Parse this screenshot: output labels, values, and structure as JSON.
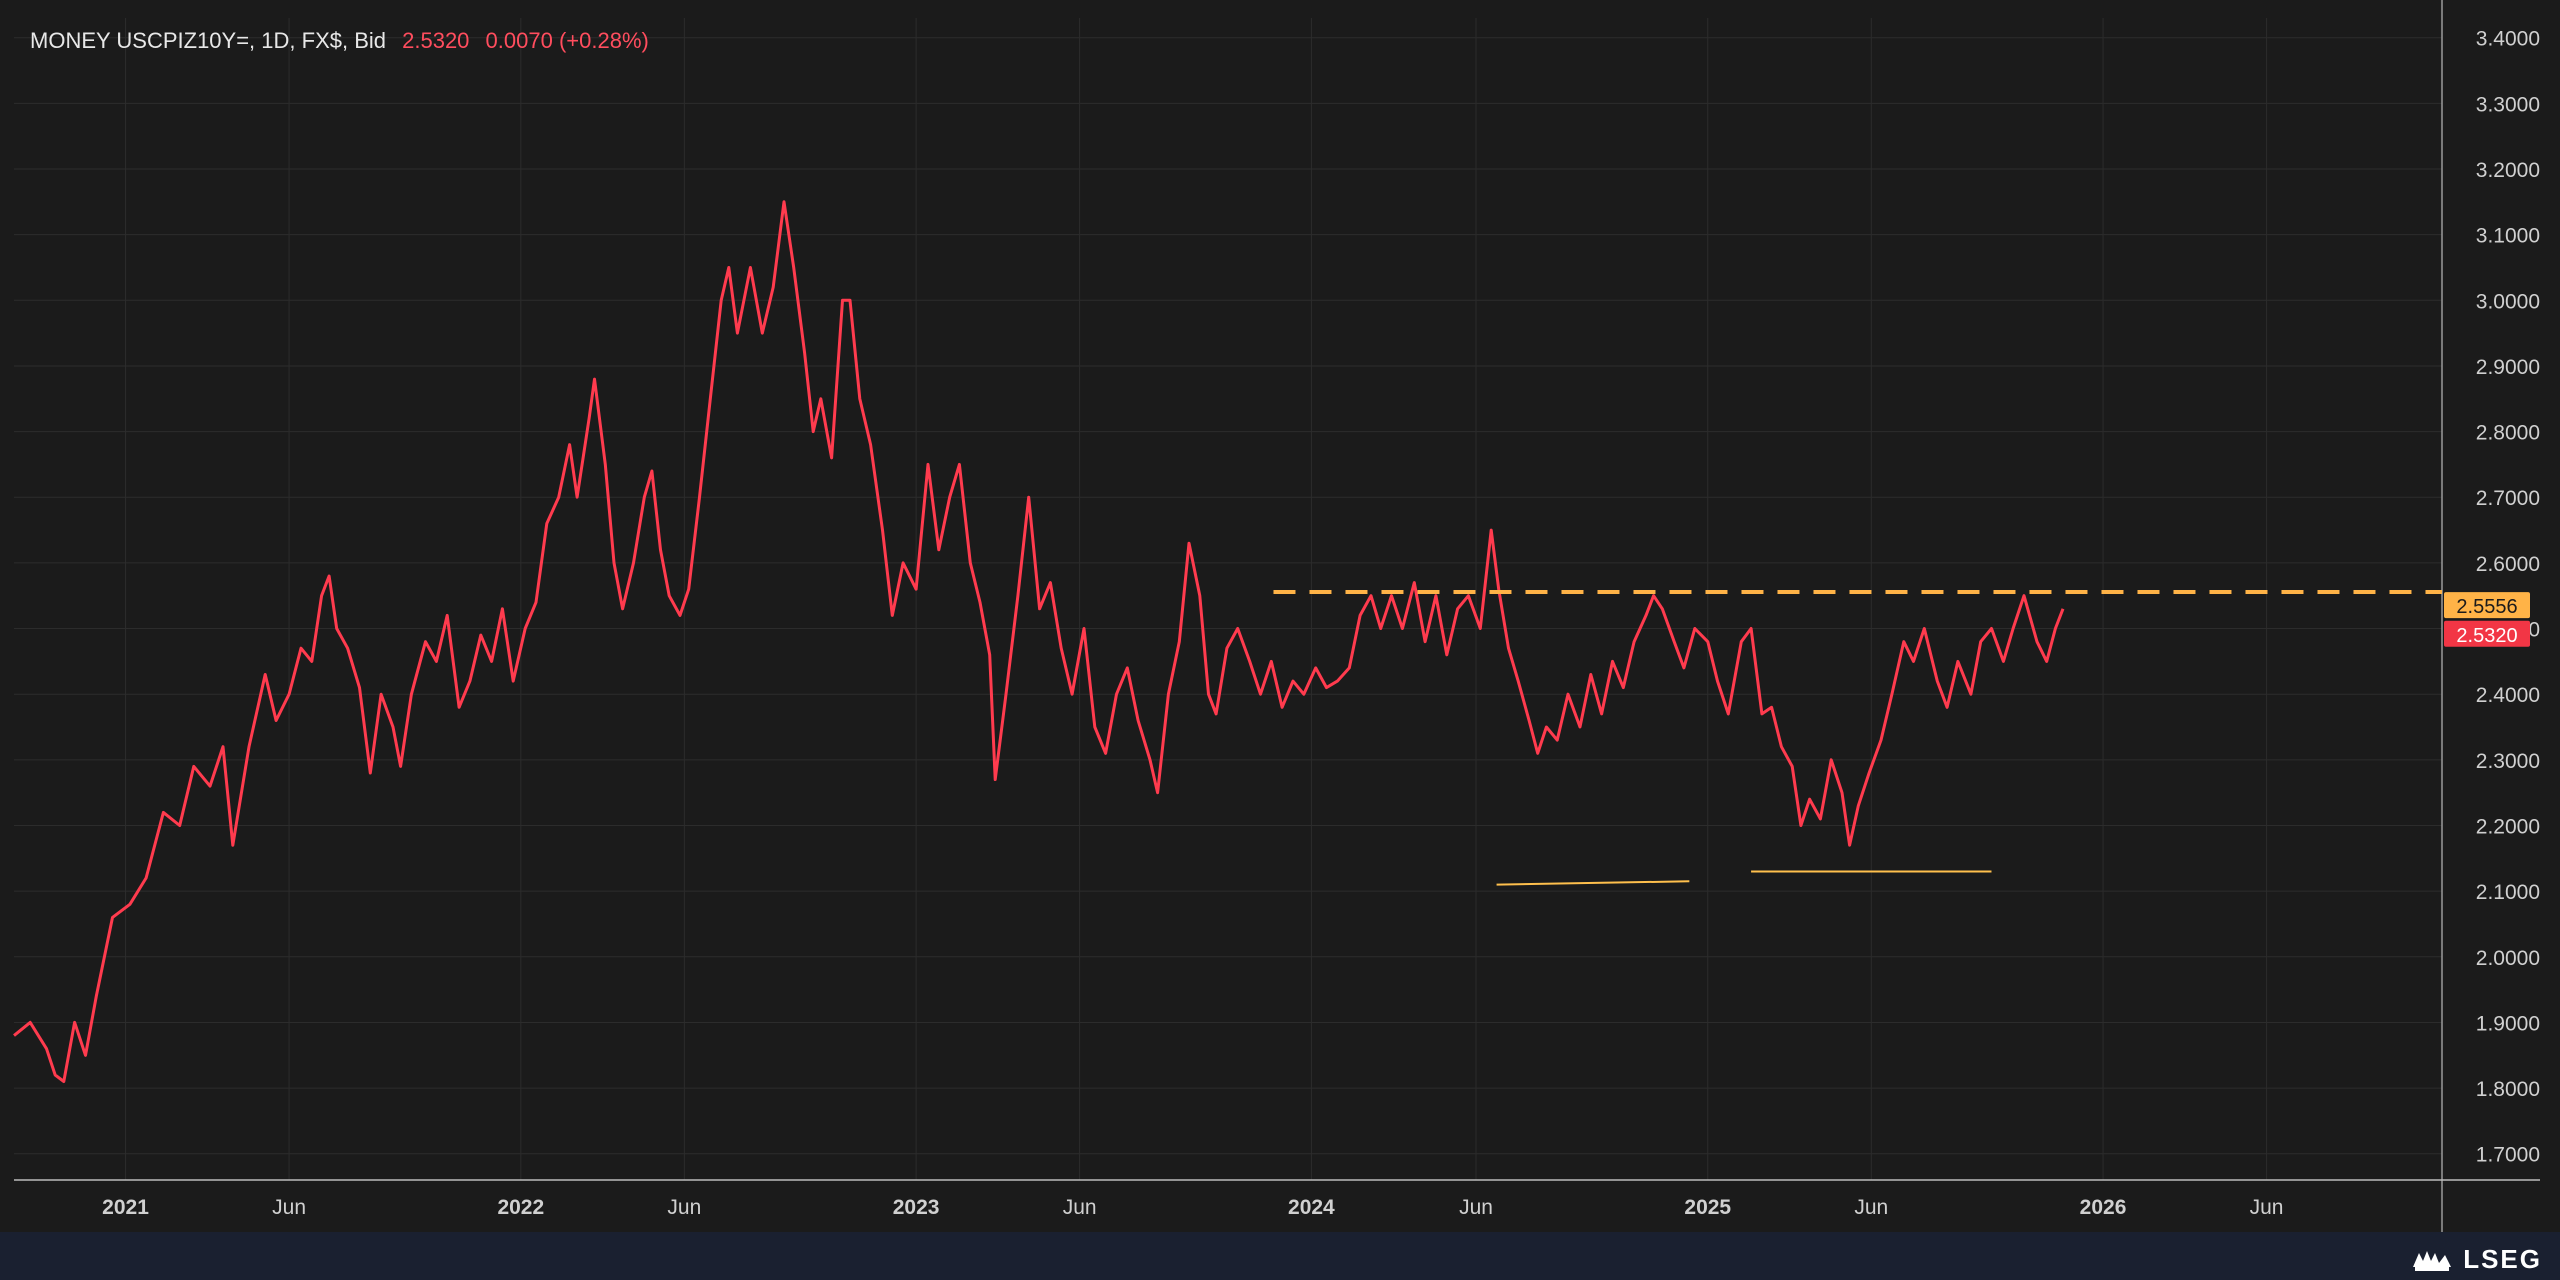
{
  "header": {
    "symbol_text": "MONEY USCPIZ10Y=, 1D, FX$, Bid",
    "price": "2.5320",
    "change": "0.0070 (+0.28%)"
  },
  "brand": {
    "name": "LSEG"
  },
  "colors": {
    "background": "#1b1b1b",
    "grid": "#2c2c2c",
    "series": "#ff3b4e",
    "resistance": "#ffb347",
    "support": "#ffc04d",
    "axis_text": "#d0d0d0",
    "price_badge": "#f23645",
    "level_badge": "#ffb347"
  },
  "chart_data": {
    "type": "line",
    "title": "MONEY USCPIZ10Y=, 1D, FX$, Bid",
    "xlabel": "",
    "ylabel": "",
    "ylim": [
      1.66,
      3.43
    ],
    "xlim": [
      "2020-09-20",
      "2026-11-10"
    ],
    "grid": true,
    "y_ticks": [
      "1.7000",
      "1.8000",
      "1.9000",
      "2.0000",
      "2.1000",
      "2.2000",
      "2.3000",
      "2.4000",
      "2.5000",
      "2.6000",
      "2.7000",
      "2.8000",
      "2.9000",
      "3.0000",
      "3.1000",
      "3.2000",
      "3.3000",
      "3.4000"
    ],
    "x_ticks": [
      {
        "date": "2021-01-01",
        "label": "2021",
        "major": true
      },
      {
        "date": "2021-06-01",
        "label": "Jun",
        "major": false
      },
      {
        "date": "2022-01-01",
        "label": "2022",
        "major": true
      },
      {
        "date": "2022-06-01",
        "label": "Jun",
        "major": false
      },
      {
        "date": "2023-01-01",
        "label": "2023",
        "major": true
      },
      {
        "date": "2023-06-01",
        "label": "Jun",
        "major": false
      },
      {
        "date": "2024-01-01",
        "label": "2024",
        "major": true
      },
      {
        "date": "2024-06-01",
        "label": "Jun",
        "major": false
      },
      {
        "date": "2025-01-01",
        "label": "2025",
        "major": true
      },
      {
        "date": "2025-06-01",
        "label": "Jun",
        "major": false
      },
      {
        "date": "2026-01-01",
        "label": "2026",
        "major": true
      },
      {
        "date": "2026-06-01",
        "label": "Jun",
        "major": false
      }
    ],
    "series": [
      {
        "values": [
          [
            "2020-09-20",
            1.88
          ],
          [
            "2020-10-05",
            1.9
          ],
          [
            "2020-10-20",
            1.86
          ],
          [
            "2020-10-28",
            1.82
          ],
          [
            "2020-11-05",
            1.81
          ],
          [
            "2020-11-15",
            1.9
          ],
          [
            "2020-11-25",
            1.85
          ],
          [
            "2020-12-05",
            1.94
          ],
          [
            "2020-12-20",
            2.06
          ],
          [
            "2021-01-05",
            2.08
          ],
          [
            "2021-01-20",
            2.12
          ],
          [
            "2021-02-05",
            2.22
          ],
          [
            "2021-02-20",
            2.2
          ],
          [
            "2021-03-05",
            2.29
          ],
          [
            "2021-03-20",
            2.26
          ],
          [
            "2021-04-01",
            2.32
          ],
          [
            "2021-04-10",
            2.17
          ],
          [
            "2021-04-25",
            2.32
          ],
          [
            "2021-05-10",
            2.43
          ],
          [
            "2021-05-20",
            2.36
          ],
          [
            "2021-06-01",
            2.4
          ],
          [
            "2021-06-12",
            2.47
          ],
          [
            "2021-06-22",
            2.45
          ],
          [
            "2021-07-01",
            2.55
          ],
          [
            "2021-07-08",
            2.58
          ],
          [
            "2021-07-15",
            2.5
          ],
          [
            "2021-07-25",
            2.47
          ],
          [
            "2021-08-05",
            2.41
          ],
          [
            "2021-08-15",
            2.28
          ],
          [
            "2021-08-25",
            2.4
          ],
          [
            "2021-09-05",
            2.35
          ],
          [
            "2021-09-12",
            2.29
          ],
          [
            "2021-09-22",
            2.4
          ],
          [
            "2021-10-05",
            2.48
          ],
          [
            "2021-10-15",
            2.45
          ],
          [
            "2021-10-25",
            2.52
          ],
          [
            "2021-11-05",
            2.38
          ],
          [
            "2021-11-15",
            2.42
          ],
          [
            "2021-11-25",
            2.49
          ],
          [
            "2021-12-05",
            2.45
          ],
          [
            "2021-12-15",
            2.53
          ],
          [
            "2021-12-25",
            2.42
          ],
          [
            "2022-01-05",
            2.5
          ],
          [
            "2022-01-15",
            2.54
          ],
          [
            "2022-01-25",
            2.66
          ],
          [
            "2022-02-05",
            2.7
          ],
          [
            "2022-02-15",
            2.78
          ],
          [
            "2022-02-22",
            2.7
          ],
          [
            "2022-03-05",
            2.82
          ],
          [
            "2022-03-10",
            2.88
          ],
          [
            "2022-03-20",
            2.75
          ],
          [
            "2022-03-28",
            2.6
          ],
          [
            "2022-04-05",
            2.53
          ],
          [
            "2022-04-15",
            2.6
          ],
          [
            "2022-04-25",
            2.7
          ],
          [
            "2022-05-02",
            2.74
          ],
          [
            "2022-05-10",
            2.62
          ],
          [
            "2022-05-18",
            2.55
          ],
          [
            "2022-05-28",
            2.52
          ],
          [
            "2022-06-05",
            2.56
          ],
          [
            "2022-06-15",
            2.7
          ],
          [
            "2022-06-25",
            2.85
          ],
          [
            "2022-07-05",
            3.0
          ],
          [
            "2022-07-12",
            3.05
          ],
          [
            "2022-07-20",
            2.95
          ],
          [
            "2022-08-01",
            3.05
          ],
          [
            "2022-08-12",
            2.95
          ],
          [
            "2022-08-22",
            3.02
          ],
          [
            "2022-09-01",
            3.15
          ],
          [
            "2022-09-10",
            3.05
          ],
          [
            "2022-09-20",
            2.92
          ],
          [
            "2022-09-28",
            2.8
          ],
          [
            "2022-10-05",
            2.85
          ],
          [
            "2022-10-15",
            2.76
          ],
          [
            "2022-10-25",
            3.0
          ],
          [
            "2022-11-01",
            3.0
          ],
          [
            "2022-11-10",
            2.85
          ],
          [
            "2022-11-20",
            2.78
          ],
          [
            "2022-12-01",
            2.65
          ],
          [
            "2022-12-10",
            2.52
          ],
          [
            "2022-12-20",
            2.6
          ],
          [
            "2023-01-01",
            2.56
          ],
          [
            "2023-01-12",
            2.75
          ],
          [
            "2023-01-22",
            2.62
          ],
          [
            "2023-02-01",
            2.7
          ],
          [
            "2023-02-10",
            2.75
          ],
          [
            "2023-02-20",
            2.6
          ],
          [
            "2023-03-01",
            2.54
          ],
          [
            "2023-03-10",
            2.46
          ],
          [
            "2023-03-15",
            2.27
          ],
          [
            "2023-03-25",
            2.4
          ],
          [
            "2023-04-05",
            2.55
          ],
          [
            "2023-04-15",
            2.7
          ],
          [
            "2023-04-25",
            2.53
          ],
          [
            "2023-05-05",
            2.57
          ],
          [
            "2023-05-15",
            2.47
          ],
          [
            "2023-05-25",
            2.4
          ],
          [
            "2023-06-05",
            2.5
          ],
          [
            "2023-06-15",
            2.35
          ],
          [
            "2023-06-25",
            2.31
          ],
          [
            "2023-07-05",
            2.4
          ],
          [
            "2023-07-15",
            2.44
          ],
          [
            "2023-07-25",
            2.36
          ],
          [
            "2023-08-05",
            2.3
          ],
          [
            "2023-08-12",
            2.25
          ],
          [
            "2023-08-22",
            2.4
          ],
          [
            "2023-09-01",
            2.48
          ],
          [
            "2023-09-10",
            2.63
          ],
          [
            "2023-09-20",
            2.55
          ],
          [
            "2023-09-28",
            2.4
          ],
          [
            "2023-10-05",
            2.37
          ],
          [
            "2023-10-15",
            2.47
          ],
          [
            "2023-10-25",
            2.5
          ],
          [
            "2023-11-05",
            2.45
          ],
          [
            "2023-11-15",
            2.4
          ],
          [
            "2023-11-25",
            2.45
          ],
          [
            "2023-12-05",
            2.38
          ],
          [
            "2023-12-15",
            2.42
          ],
          [
            "2023-12-25",
            2.4
          ],
          [
            "2024-01-05",
            2.44
          ],
          [
            "2024-01-15",
            2.41
          ],
          [
            "2024-01-25",
            2.42
          ],
          [
            "2024-02-05",
            2.44
          ],
          [
            "2024-02-15",
            2.52
          ],
          [
            "2024-02-25",
            2.55
          ],
          [
            "2024-03-05",
            2.5
          ],
          [
            "2024-03-15",
            2.55
          ],
          [
            "2024-03-25",
            2.5
          ],
          [
            "2024-04-05",
            2.57
          ],
          [
            "2024-04-15",
            2.48
          ],
          [
            "2024-04-25",
            2.55
          ],
          [
            "2024-05-05",
            2.46
          ],
          [
            "2024-05-15",
            2.53
          ],
          [
            "2024-05-25",
            2.55
          ],
          [
            "2024-06-05",
            2.5
          ],
          [
            "2024-06-15",
            2.65
          ],
          [
            "2024-06-22",
            2.56
          ],
          [
            "2024-07-01",
            2.47
          ],
          [
            "2024-07-10",
            2.42
          ],
          [
            "2024-07-20",
            2.36
          ],
          [
            "2024-07-28",
            2.31
          ],
          [
            "2024-08-05",
            2.35
          ],
          [
            "2024-08-15",
            2.33
          ],
          [
            "2024-08-25",
            2.4
          ],
          [
            "2024-09-05",
            2.35
          ],
          [
            "2024-09-15",
            2.43
          ],
          [
            "2024-09-25",
            2.37
          ],
          [
            "2024-10-05",
            2.45
          ],
          [
            "2024-10-15",
            2.41
          ],
          [
            "2024-10-25",
            2.48
          ],
          [
            "2024-11-05",
            2.52
          ],
          [
            "2024-11-12",
            2.55
          ],
          [
            "2024-11-20",
            2.53
          ],
          [
            "2024-12-01",
            2.48
          ],
          [
            "2024-12-10",
            2.44
          ],
          [
            "2024-12-20",
            2.5
          ],
          [
            "2025-01-01",
            2.48
          ],
          [
            "2025-01-10",
            2.42
          ],
          [
            "2025-01-20",
            2.37
          ],
          [
            "2025-02-01",
            2.48
          ],
          [
            "2025-02-10",
            2.5
          ],
          [
            "2025-02-20",
            2.37
          ],
          [
            "2025-03-01",
            2.38
          ],
          [
            "2025-03-10",
            2.32
          ],
          [
            "2025-03-20",
            2.29
          ],
          [
            "2025-03-28",
            2.2
          ],
          [
            "2025-04-05",
            2.24
          ],
          [
            "2025-04-15",
            2.21
          ],
          [
            "2025-04-25",
            2.3
          ],
          [
            "2025-05-05",
            2.25
          ],
          [
            "2025-05-12",
            2.17
          ],
          [
            "2025-05-20",
            2.23
          ],
          [
            "2025-05-30",
            2.28
          ],
          [
            "2025-06-10",
            2.33
          ],
          [
            "2025-06-20",
            2.4
          ],
          [
            "2025-07-01",
            2.48
          ],
          [
            "2025-07-10",
            2.45
          ],
          [
            "2025-07-20",
            2.5
          ],
          [
            "2025-08-01",
            2.42
          ],
          [
            "2025-08-10",
            2.38
          ],
          [
            "2025-08-20",
            2.45
          ],
          [
            "2025-09-01",
            2.4
          ],
          [
            "2025-09-10",
            2.48
          ],
          [
            "2025-09-20",
            2.5
          ],
          [
            "2025-10-01",
            2.45
          ],
          [
            "2025-10-10",
            2.5
          ],
          [
            "2025-10-20",
            2.55
          ],
          [
            "2025-11-01",
            2.48
          ],
          [
            "2025-11-10",
            2.45
          ],
          [
            "2025-11-18",
            2.5
          ],
          [
            "2025-11-25",
            2.53
          ]
        ]
      }
    ],
    "annotations": [
      {
        "type": "hline_dashed",
        "y": 2.5556,
        "x_start": "2023-11-27",
        "x_end": "2026-11-10",
        "badge": "2.5556"
      },
      {
        "type": "segment",
        "from": [
          "2024-06-20",
          2.11
        ],
        "to": [
          "2024-12-15",
          2.115
        ]
      },
      {
        "type": "segment",
        "from": [
          "2025-02-10",
          2.13
        ],
        "to": [
          "2025-09-20",
          2.13
        ]
      }
    ],
    "last_price_badge": {
      "y": 2.532,
      "label": "2.5320"
    }
  }
}
